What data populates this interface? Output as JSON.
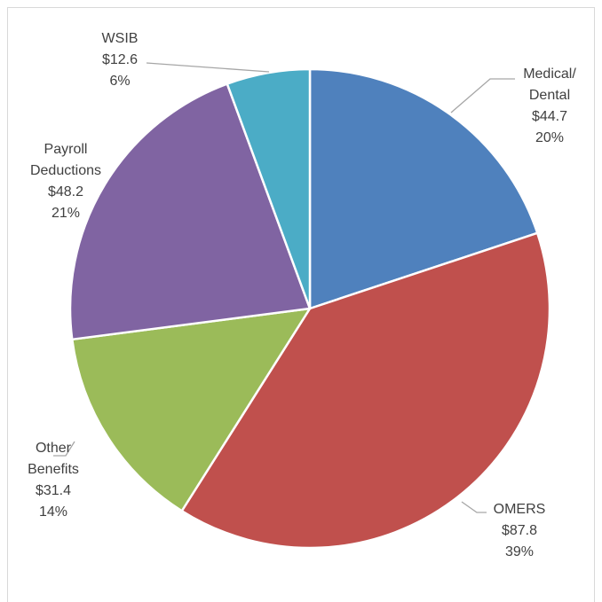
{
  "chart_data": {
    "type": "pie",
    "categories": [
      "Medical/ Dental",
      "OMERS",
      "Other Benefits",
      "Payroll Deductions",
      "WSIB"
    ],
    "values": [
      44.7,
      87.8,
      31.4,
      48.2,
      12.6
    ],
    "value_labels": [
      "$44.7",
      "$87.8",
      "$31.4",
      "$48.2",
      "$12.6"
    ],
    "percent_labels": [
      "20%",
      "39%",
      "14%",
      "21%",
      "6%"
    ],
    "colors": [
      "#4f81bd",
      "#c0504d",
      "#9bbb59",
      "#8064a2",
      "#4bacc6"
    ]
  }
}
